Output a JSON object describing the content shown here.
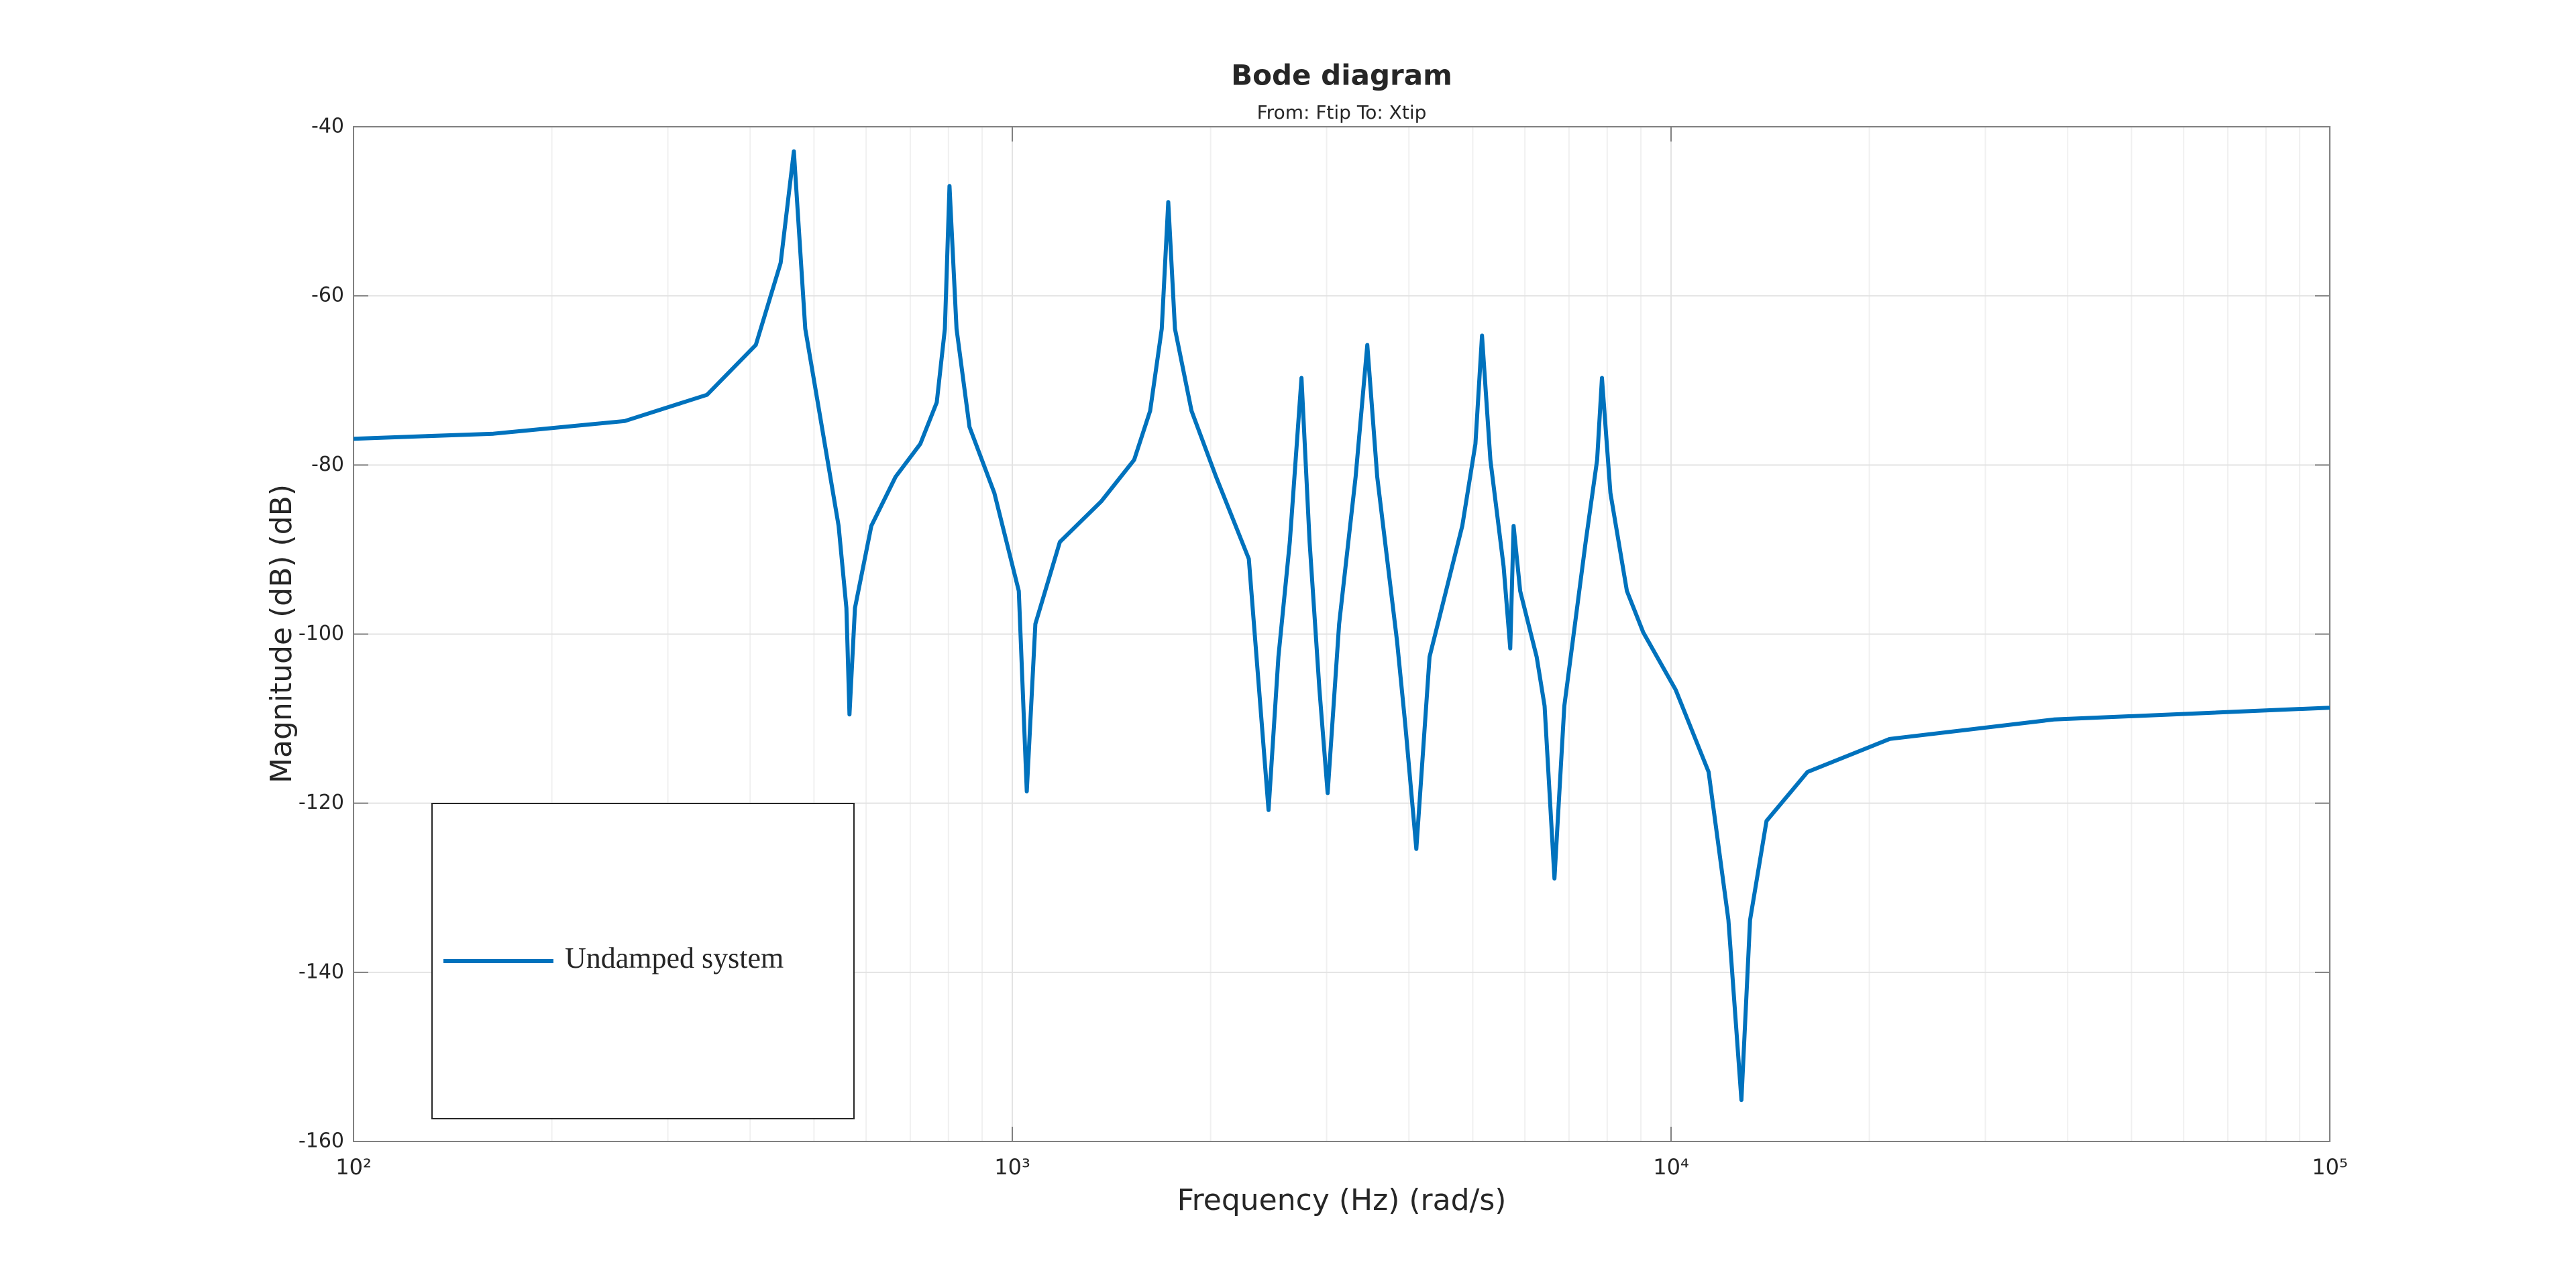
{
  "chart_data": {
    "type": "line",
    "title": "Bode diagram",
    "subtitle": "From: Ftip  To: Xtip",
    "xlabel": "Frequency (Hz)  (rad/s)",
    "ylabel": "Magnitude (dB) (dB)",
    "xscale": "log",
    "grid": true,
    "legend": "lower left",
    "xlim": [
      100,
      100000
    ],
    "ylim": [
      -160,
      -40
    ],
    "xticks": [
      {
        "value": 100,
        "label": "10²"
      },
      {
        "value": 1000,
        "label": "10³"
      },
      {
        "value": 10000,
        "label": "10⁴"
      },
      {
        "value": 100000,
        "label": "10⁵"
      }
    ],
    "yticks": [
      -160,
      -140,
      -120,
      -100,
      -80,
      -60,
      -40
    ],
    "x": [
      100,
      163,
      258,
      344,
      408,
      445,
      466,
      485,
      514,
      545,
      560,
      566,
      577,
      611,
      665,
      725,
      768,
      790,
      803,
      823,
      861,
      939,
      1023,
      1052,
      1084,
      1181,
      1365,
      1531,
      1619,
      1686,
      1725,
      1766,
      1871,
      2039,
      2286,
      2449,
      2535,
      2638,
      2748,
      2827,
      2926,
      3011,
      3134,
      3320,
      3459,
      3581,
      3837,
      3948,
      4105,
      4299,
      4820,
      5047,
      5164,
      5318,
      5570,
      5700,
      5767,
      5902,
      6252,
      6427,
      6653,
      6887,
      7419,
      7722,
      7855,
      8090,
      8570,
      9075,
      10165,
      11402,
      12220,
      12790,
      13180,
      13960,
      16110,
      21470,
      38110,
      100000
    ],
    "series": [
      {
        "name": "Undamped system",
        "color": "#0072bd",
        "values": [
          -76.9,
          -76.3,
          -74.8,
          -71.7,
          -65.8,
          -56.1,
          -42.9,
          -63.9,
          -75.5,
          -87.2,
          -96.9,
          -109.5,
          -96.9,
          -87.2,
          -81.4,
          -77.5,
          -72.6,
          -63.9,
          -47.0,
          -63.9,
          -75.5,
          -83.3,
          -94.9,
          -118.6,
          -98.8,
          -89.1,
          -84.3,
          -79.4,
          -73.6,
          -63.9,
          -48.9,
          -63.9,
          -73.6,
          -81.4,
          -91.1,
          -120.8,
          -102.7,
          -89.1,
          -69.7,
          -89.1,
          -106.6,
          -118.8,
          -98.8,
          -81.4,
          -65.8,
          -81.4,
          -100.8,
          -110.5,
          -125.4,
          -102.7,
          -87.2,
          -77.5,
          -64.7,
          -79.4,
          -92.0,
          -101.7,
          -87.2,
          -94.9,
          -102.7,
          -108.5,
          -128.9,
          -108.5,
          -89.1,
          -79.4,
          -69.7,
          -83.3,
          -94.9,
          -99.8,
          -106.6,
          -116.3,
          -133.8,
          -155.1,
          -133.8,
          -122.1,
          -116.3,
          -112.4,
          -110.1,
          -108.7
        ]
      }
    ]
  }
}
